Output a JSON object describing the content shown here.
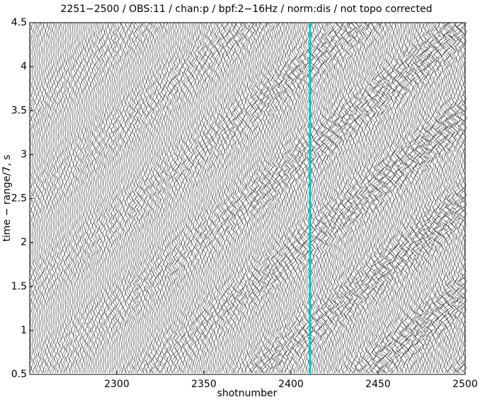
{
  "chart_data": {
    "type": "wiggle",
    "title": "2251−2500 / OBS:11 / chan:p / bpf:2−16Hz / norm:dis / not topo corrected",
    "x_label": "shotnumber",
    "y_label": "time − range/7, s",
    "xlim": [
      2250,
      2500
    ],
    "xticks": [
      2300,
      2350,
      2400,
      2450,
      2500
    ],
    "ylim": [
      0.5,
      4.5
    ],
    "yticks": [
      0.5,
      1,
      1.5,
      2,
      2.5,
      3,
      3.5,
      4,
      4.5
    ],
    "marker_x": 2411,
    "marker_color": "#00c8d0"
  }
}
